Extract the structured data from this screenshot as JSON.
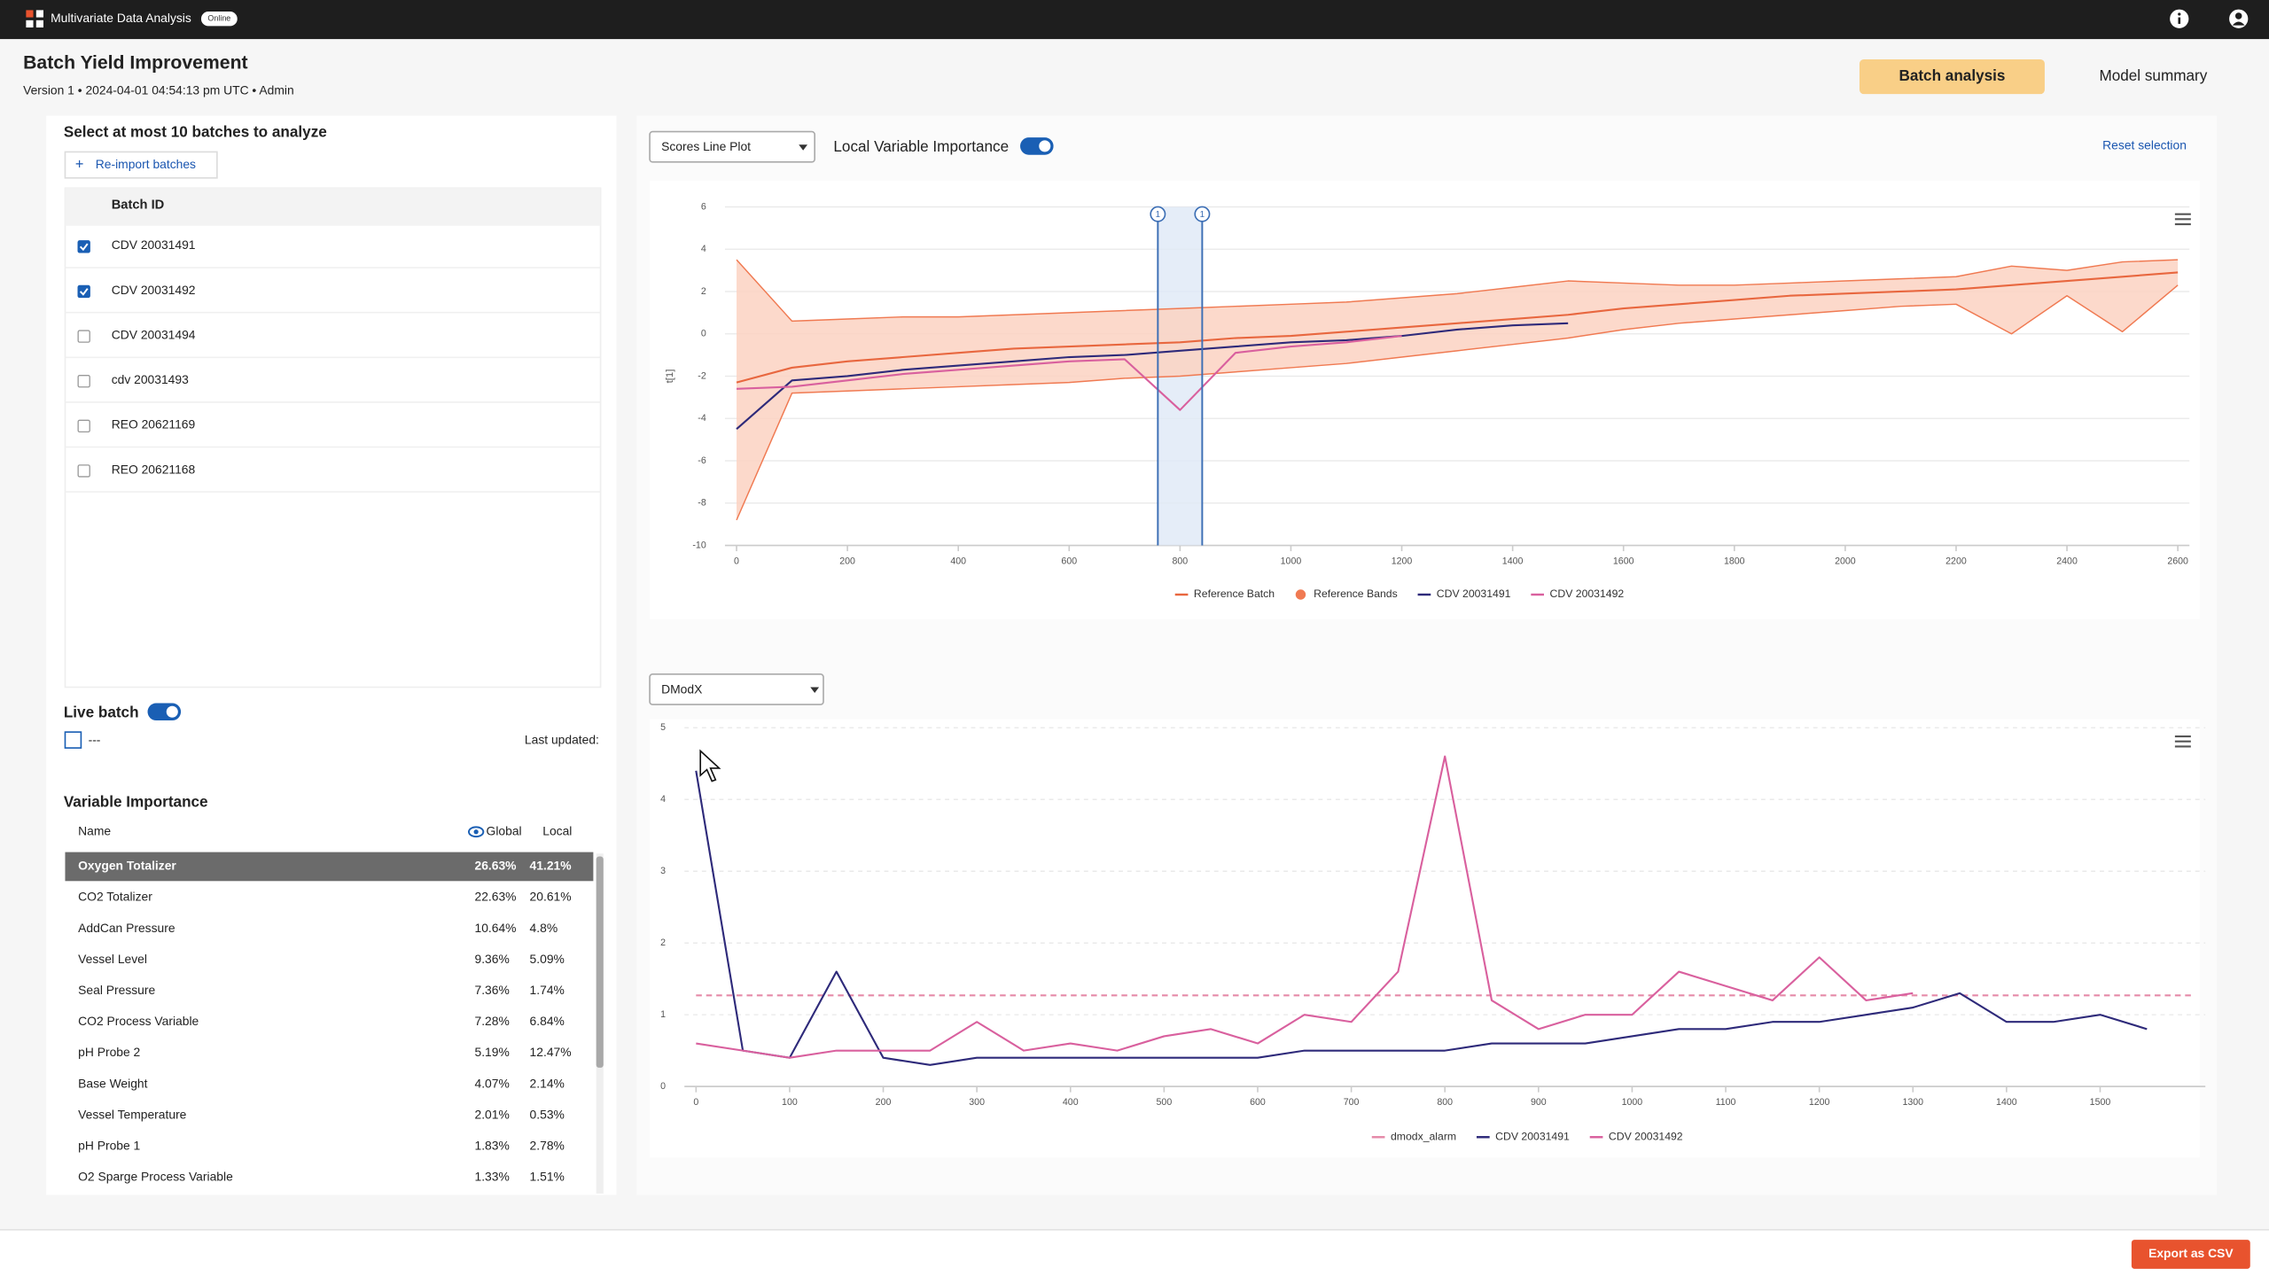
{
  "app": {
    "name": "Multivariate Data Analysis",
    "status": "Online"
  },
  "header": {
    "title": "Batch Yield Improvement",
    "subtitle": "Version 1 • 2024-04-01 04:54:13 pm UTC • Admin",
    "tabs": [
      "Batch analysis",
      "Model summary"
    ],
    "active_tab": 0
  },
  "batch_selection": {
    "title": "Select at most 10 batches to analyze",
    "button": "Re-import batches",
    "column": "Batch ID",
    "rows": [
      {
        "id": "CDV 20031491",
        "checked": true
      },
      {
        "id": "CDV 20031492",
        "checked": true
      },
      {
        "id": "CDV 20031494",
        "checked": false
      },
      {
        "id": "cdv 20031493",
        "checked": false
      },
      {
        "id": "REO 20621169",
        "checked": false
      },
      {
        "id": "REO 20621168",
        "checked": false
      }
    ]
  },
  "live_batch": {
    "label": "Live batch",
    "on": true,
    "value": "---",
    "updated": "Last updated:"
  },
  "variable_importance": {
    "title": "Variable Importance",
    "columns": [
      "Name",
      "Global",
      "Local"
    ],
    "selected": 0,
    "rows": [
      [
        "Oxygen Totalizer",
        "26.63%",
        "41.21%"
      ],
      [
        "CO2 Totalizer",
        "22.63%",
        "20.61%"
      ],
      [
        "AddCan Pressure",
        "10.64%",
        "4.8%"
      ],
      [
        "Vessel Level",
        "9.36%",
        "5.09%"
      ],
      [
        "Seal Pressure",
        "7.36%",
        "1.74%"
      ],
      [
        "CO2 Process Variable",
        "7.28%",
        "6.84%"
      ],
      [
        "pH Probe 2",
        "5.19%",
        "12.47%"
      ],
      [
        "Base Weight",
        "4.07%",
        "2.14%"
      ],
      [
        "Vessel Temperature",
        "2.01%",
        "0.53%"
      ],
      [
        "pH Probe 1",
        "1.83%",
        "2.78%"
      ],
      [
        "O2 Sparge Process Variable",
        "1.33%",
        "1.51%"
      ]
    ]
  },
  "export_button": "Export as CSV",
  "chart_data": [
    {
      "type": "line",
      "selector": "Scores Line Plot",
      "toggle_label": "Local Variable Importance",
      "toggle_on": true,
      "reset": "Reset selection",
      "ylabel": "t[1]",
      "grid": "solid",
      "xlim": [
        0,
        2600
      ],
      "ylim": [
        -10,
        6
      ],
      "xticks": [
        0,
        200,
        400,
        600,
        800,
        1000,
        1200,
        1400,
        1600,
        1800,
        2000,
        2200,
        2400,
        2600
      ],
      "yticks": [
        -10,
        -8,
        -6,
        -4,
        -2,
        0,
        2,
        4,
        6
      ],
      "selection": {
        "x": [
          760,
          840
        ],
        "labels": [
          "1",
          "1"
        ]
      },
      "x": [
        0,
        100,
        200,
        300,
        400,
        500,
        600,
        700,
        800,
        900,
        1000,
        1100,
        1200,
        1300,
        1400,
        1500,
        1600,
        1700,
        1800,
        1900,
        2000,
        2100,
        2200,
        2300,
        2400,
        2500,
        2600
      ],
      "series": [
        {
          "name": "Reference Batch",
          "color": "#e8673f",
          "values": [
            -2.3,
            -1.6,
            -1.3,
            -1.1,
            -0.9,
            -0.7,
            -0.6,
            -0.5,
            -0.4,
            -0.2,
            -0.1,
            0.1,
            0.3,
            0.5,
            0.7,
            0.9,
            1.2,
            1.4,
            1.6,
            1.8,
            1.9,
            2.0,
            2.1,
            2.3,
            2.5,
            2.7,
            2.9
          ]
        },
        {
          "name": "Reference Bands",
          "color": "#f07a52",
          "fill": "#fcd2c2",
          "upper": [
            3.5,
            0.6,
            0.7,
            0.8,
            0.8,
            0.9,
            1.0,
            1.1,
            1.2,
            1.3,
            1.4,
            1.5,
            1.7,
            1.9,
            2.2,
            2.5,
            2.4,
            2.3,
            2.3,
            2.4,
            2.5,
            2.6,
            2.7,
            3.2,
            3.0,
            3.4,
            3.5
          ],
          "lower": [
            -8.8,
            -2.8,
            -2.7,
            -2.6,
            -2.5,
            -2.4,
            -2.3,
            -2.1,
            -2.0,
            -1.8,
            -1.6,
            -1.4,
            -1.1,
            -0.8,
            -0.5,
            -0.2,
            0.2,
            0.5,
            0.7,
            0.9,
            1.1,
            1.3,
            1.4,
            0.0,
            1.8,
            0.1,
            2.3
          ]
        },
        {
          "name": "CDV 20031491",
          "color": "#2e2a7a",
          "values": [
            -4.5,
            -2.2,
            -2.0,
            -1.7,
            -1.5,
            -1.3,
            -1.1,
            -1.0,
            -0.8,
            -0.6,
            -0.4,
            -0.3,
            -0.1,
            0.2,
            0.4,
            0.5,
            null,
            null,
            null,
            null,
            null,
            null,
            null,
            null,
            null,
            null,
            null
          ]
        },
        {
          "name": "CDV 20031492",
          "color": "#d9609e",
          "values": [
            -2.6,
            -2.5,
            -2.2,
            -1.9,
            -1.7,
            -1.5,
            -1.3,
            -1.2,
            -3.6,
            -0.9,
            -0.6,
            -0.4,
            -0.1,
            null,
            null,
            null,
            null,
            null,
            null,
            null,
            null,
            null,
            null,
            null,
            null,
            null,
            null
          ]
        }
      ]
    },
    {
      "type": "line",
      "selector": "DModX",
      "grid": "dashed",
      "xlim": [
        0,
        1600
      ],
      "ylim": [
        0,
        5
      ],
      "xticks": [
        0,
        100,
        200,
        300,
        400,
        500,
        600,
        700,
        800,
        900,
        1000,
        1100,
        1200,
        1300,
        1400,
        1500
      ],
      "yticks": [
        0,
        1,
        2,
        3,
        4,
        5
      ],
      "x": [
        0,
        50,
        100,
        150,
        200,
        250,
        300,
        350,
        400,
        450,
        500,
        550,
        600,
        650,
        700,
        750,
        800,
        850,
        900,
        950,
        1000,
        1050,
        1100,
        1150,
        1200,
        1250,
        1300,
        1350,
        1400,
        1450,
        1500,
        1550
      ],
      "series": [
        {
          "name": "dmodx_alarm",
          "color": "#e58aa8",
          "dashed": true,
          "x": [
            0,
            1600
          ],
          "values": [
            1.27,
            1.27
          ]
        },
        {
          "name": "CDV 20031491",
          "color": "#2e2a7a",
          "values": [
            4.4,
            0.5,
            0.4,
            1.6,
            0.4,
            0.3,
            0.4,
            0.4,
            0.4,
            0.4,
            0.4,
            0.4,
            0.4,
            0.5,
            0.5,
            0.5,
            0.5,
            0.6,
            0.6,
            0.6,
            0.7,
            0.8,
            0.8,
            0.9,
            0.9,
            1.0,
            1.1,
            1.3,
            0.9,
            0.9,
            1.0,
            0.8
          ]
        },
        {
          "name": "CDV 20031492",
          "color": "#d9609e",
          "values": [
            0.6,
            0.5,
            0.4,
            0.5,
            0.5,
            0.5,
            0.9,
            0.5,
            0.6,
            0.5,
            0.7,
            0.8,
            0.6,
            1.0,
            0.9,
            1.6,
            4.6,
            1.2,
            0.8,
            1.0,
            1.0,
            1.6,
            1.4,
            1.2,
            1.8,
            1.2,
            1.3,
            null,
            null,
            null,
            null,
            null
          ]
        }
      ]
    }
  ]
}
